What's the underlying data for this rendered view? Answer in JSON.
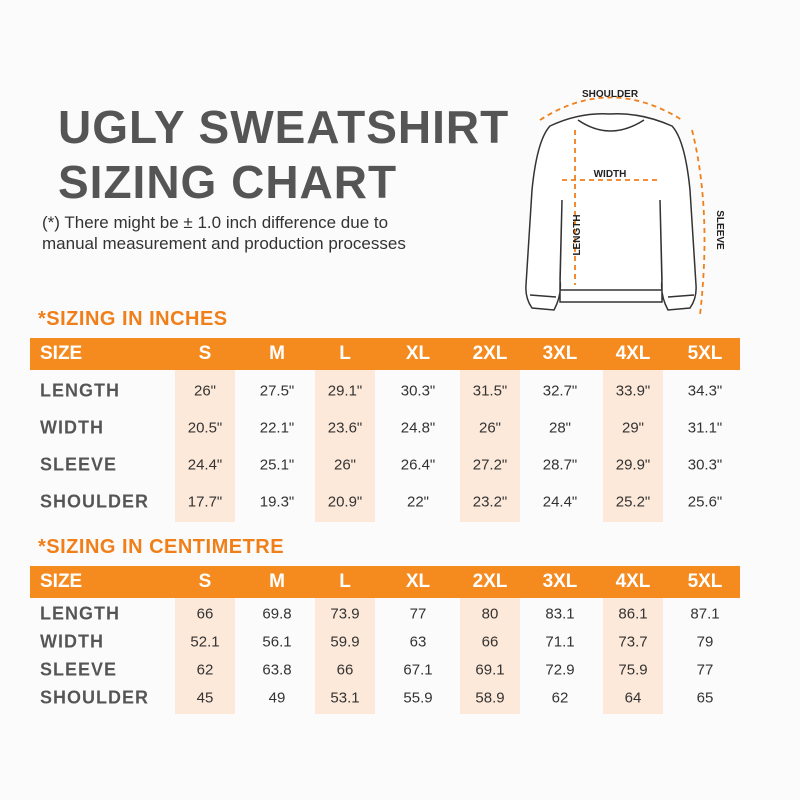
{
  "header": {
    "title_lines": [
      "UGLY SWEATSHIRT",
      "SIZING CHART"
    ],
    "note_lines": [
      "(*) There might be ± 1.0 inch difference due to",
      "manual measurement and production processes"
    ]
  },
  "diagram": {
    "shoulder": "SHOULDER",
    "width": "WIDTH",
    "length": "LENGTH",
    "sleeve": "SLEEVE"
  },
  "tables": [
    {
      "heading": "*SIZING IN INCHES",
      "columns": [
        "SIZE",
        "S",
        "M",
        "L",
        "XL",
        "2XL",
        "3XL",
        "4XL",
        "5XL"
      ],
      "rows": [
        [
          "LENGTH",
          "26\"",
          "27.5\"",
          "29.1\"",
          "30.3\"",
          "31.5\"",
          "32.7\"",
          "33.9\"",
          "34.3\""
        ],
        [
          "WIDTH",
          "20.5\"",
          "22.1\"",
          "23.6\"",
          "24.8\"",
          "26\"",
          "28\"",
          "29\"",
          "31.1\""
        ],
        [
          "SLEEVE",
          "24.4\"",
          "25.1\"",
          "26\"",
          "26.4\"",
          "27.2\"",
          "28.7\"",
          "29.9\"",
          "30.3\""
        ],
        [
          "SHOULDER",
          "17.7\"",
          "19.3\"",
          "20.9\"",
          "22\"",
          "23.2\"",
          "24.4\"",
          "25.2\"",
          "25.6\""
        ]
      ]
    },
    {
      "heading": "*SIZING IN CENTIMETRE",
      "columns": [
        "SIZE",
        "S",
        "M",
        "L",
        "XL",
        "2XL",
        "3XL",
        "4XL",
        "5XL"
      ],
      "rows": [
        [
          "LENGTH",
          "66",
          "69.8",
          "73.9",
          "77",
          "80",
          "83.1",
          "86.1",
          "87.1"
        ],
        [
          "WIDTH",
          "52.1",
          "56.1",
          "59.9",
          "63",
          "66",
          "71.1",
          "73.7",
          "79"
        ],
        [
          "SLEEVE",
          "62",
          "63.8",
          "66",
          "67.1",
          "69.1",
          "72.9",
          "75.9",
          "77"
        ],
        [
          "SHOULDER",
          "45",
          "49",
          "53.1",
          "55.9",
          "58.9",
          "62",
          "64",
          "65"
        ]
      ]
    }
  ]
}
